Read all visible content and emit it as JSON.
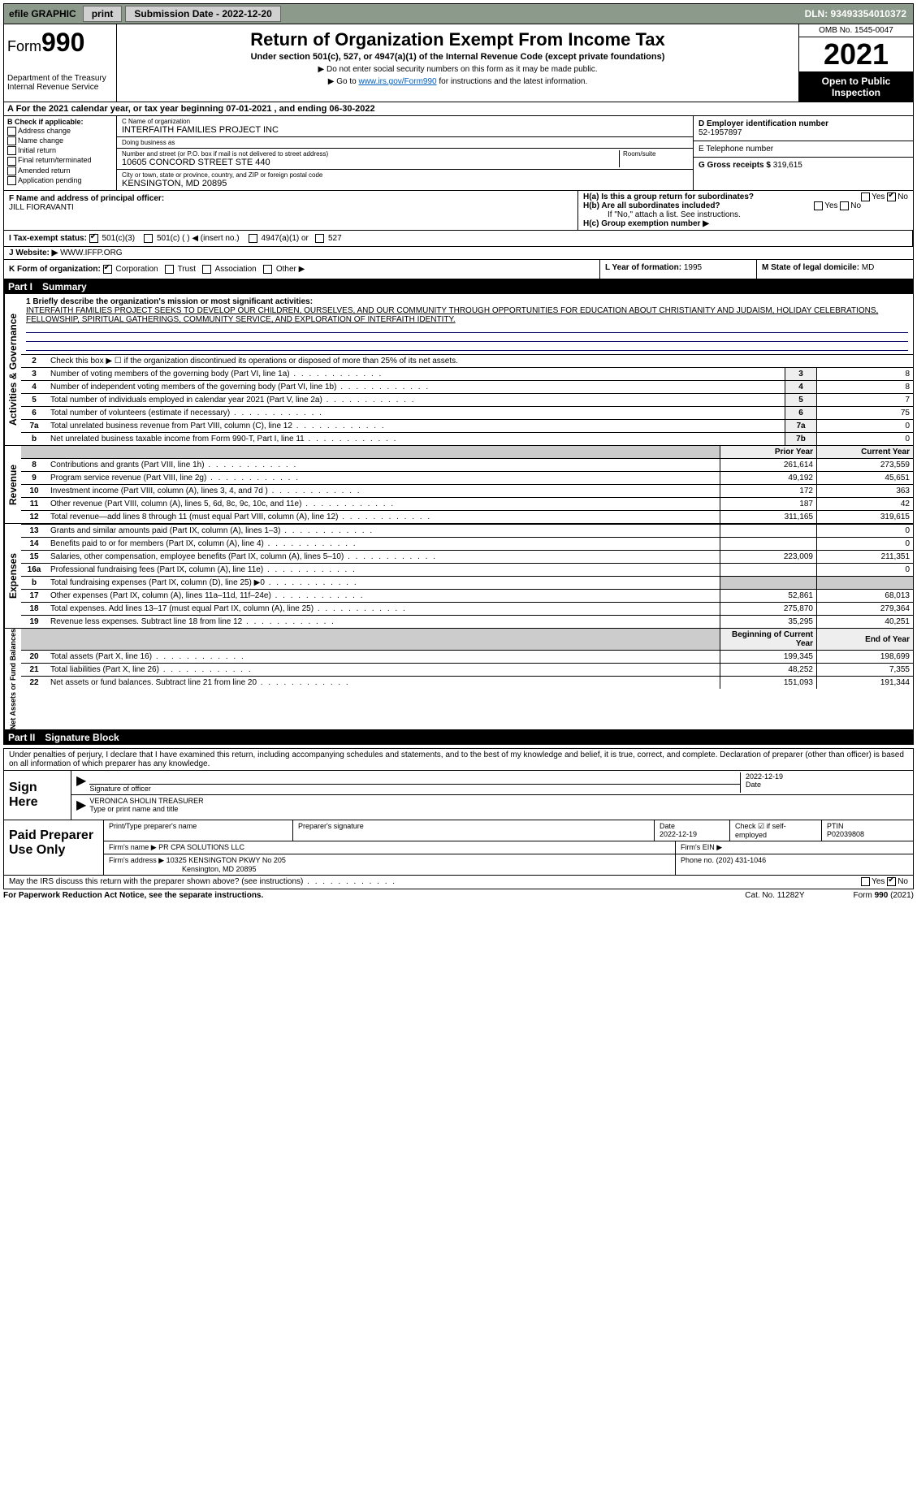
{
  "topbar": {
    "efile": "efile GRAPHIC",
    "print": "print",
    "subdate_label": "Submission Date - 2022-12-20",
    "dln": "DLN: 93493354010372"
  },
  "header": {
    "form_prefix": "Form",
    "form_number": "990",
    "title": "Return of Organization Exempt From Income Tax",
    "subtitle": "Under section 501(c), 527, or 4947(a)(1) of the Internal Revenue Code (except private foundations)",
    "note1": "▶ Do not enter social security numbers on this form as it may be made public.",
    "note2_pre": "▶ Go to ",
    "note2_link": "www.irs.gov/Form990",
    "note2_post": " for instructions and the latest information.",
    "dept": "Department of the Treasury",
    "irs": "Internal Revenue Service",
    "omb": "OMB No. 1545-0047",
    "year": "2021",
    "open": "Open to Public Inspection"
  },
  "period": "A For the 2021 calendar year, or tax year beginning 07-01-2021    , and ending 06-30-2022",
  "boxB": {
    "label": "B Check if applicable:",
    "items": [
      "Address change",
      "Name change",
      "Initial return",
      "Final return/terminated",
      "Amended return",
      "Application pending"
    ]
  },
  "boxC": {
    "name_label": "C Name of organization",
    "name": "INTERFAITH FAMILIES PROJECT INC",
    "dba_label": "Doing business as",
    "dba": "",
    "addr_label": "Number and street (or P.O. box if mail is not delivered to street address)",
    "room_label": "Room/suite",
    "addr": "10605 CONCORD STREET STE 440",
    "city_label": "City or town, state or province, country, and ZIP or foreign postal code",
    "city": "KENSINGTON, MD  20895"
  },
  "boxD": {
    "label": "D Employer identification number",
    "value": "52-1957897"
  },
  "boxE": {
    "label": "E Telephone number",
    "value": ""
  },
  "boxG": {
    "label": "G Gross receipts $",
    "value": "319,615"
  },
  "boxF": {
    "label": "F Name and address of principal officer:",
    "value": "JILL FIORAVANTI"
  },
  "boxH": {
    "ha": "H(a)  Is this a group return for subordinates?",
    "hb": "H(b)  Are all subordinates included?",
    "hb_note": "If \"No,\" attach a list. See instructions.",
    "hc": "H(c)  Group exemption number ▶",
    "yes": "Yes",
    "no": "No"
  },
  "boxI": {
    "label": "I   Tax-exempt status:",
    "opts": [
      "501(c)(3)",
      "501(c) (  ) ◀ (insert no.)",
      "4947(a)(1) or",
      "527"
    ]
  },
  "boxJ": {
    "label": "J   Website: ▶",
    "value": "WWW.IFFP.ORG"
  },
  "boxK": {
    "label": "K Form of organization:",
    "opts": [
      "Corporation",
      "Trust",
      "Association",
      "Other ▶"
    ]
  },
  "boxL": {
    "label": "L Year of formation:",
    "value": "1995"
  },
  "boxM": {
    "label": "M State of legal domicile:",
    "value": "MD"
  },
  "part1": {
    "num": "Part I",
    "title": "Summary"
  },
  "mission_label": "1  Briefly describe the organization's mission or most significant activities:",
  "mission": "INTERFAITH FAMILIES PROJECT SEEKS TO DEVELOP OUR CHILDREN, OURSELVES, AND OUR COMMUNITY THROUGH OPPORTUNITIES FOR EDUCATION ABOUT CHRISTIANITY AND JUDAISM, HOLIDAY CELEBRATIONS, FELLOWSHIP, SPIRITUAL GATHERINGS, COMMUNITY SERVICE, AND EXPLORATION OF INTERFAITH IDENTITY.",
  "governance": {
    "tab": "Activities & Governance",
    "line2": "Check this box ▶ ☐ if the organization discontinued its operations or disposed of more than 25% of its net assets.",
    "rows": [
      {
        "n": "3",
        "t": "Number of voting members of the governing body (Part VI, line 1a)",
        "ref": "3",
        "v": "8"
      },
      {
        "n": "4",
        "t": "Number of independent voting members of the governing body (Part VI, line 1b)",
        "ref": "4",
        "v": "8"
      },
      {
        "n": "5",
        "t": "Total number of individuals employed in calendar year 2021 (Part V, line 2a)",
        "ref": "5",
        "v": "7"
      },
      {
        "n": "6",
        "t": "Total number of volunteers (estimate if necessary)",
        "ref": "6",
        "v": "75"
      },
      {
        "n": "7a",
        "t": "Total unrelated business revenue from Part VIII, column (C), line 12",
        "ref": "7a",
        "v": "0"
      },
      {
        "n": "b",
        "t": "Net unrelated business taxable income from Form 990-T, Part I, line 11",
        "ref": "7b",
        "v": "0"
      }
    ]
  },
  "revenue": {
    "tab": "Revenue",
    "hprior": "Prior Year",
    "hcur": "Current Year",
    "rows": [
      {
        "n": "8",
        "t": "Contributions and grants (Part VIII, line 1h)",
        "p": "261,614",
        "c": "273,559"
      },
      {
        "n": "9",
        "t": "Program service revenue (Part VIII, line 2g)",
        "p": "49,192",
        "c": "45,651"
      },
      {
        "n": "10",
        "t": "Investment income (Part VIII, column (A), lines 3, 4, and 7d )",
        "p": "172",
        "c": "363"
      },
      {
        "n": "11",
        "t": "Other revenue (Part VIII, column (A), lines 5, 6d, 8c, 9c, 10c, and 11e)",
        "p": "187",
        "c": "42"
      },
      {
        "n": "12",
        "t": "Total revenue—add lines 8 through 11 (must equal Part VIII, column (A), line 12)",
        "p": "311,165",
        "c": "319,615"
      }
    ]
  },
  "expenses": {
    "tab": "Expenses",
    "rows": [
      {
        "n": "13",
        "t": "Grants and similar amounts paid (Part IX, column (A), lines 1–3)",
        "p": "",
        "c": "0"
      },
      {
        "n": "14",
        "t": "Benefits paid to or for members (Part IX, column (A), line 4)",
        "p": "",
        "c": "0"
      },
      {
        "n": "15",
        "t": "Salaries, other compensation, employee benefits (Part IX, column (A), lines 5–10)",
        "p": "223,009",
        "c": "211,351"
      },
      {
        "n": "16a",
        "t": "Professional fundraising fees (Part IX, column (A), line 11e)",
        "p": "",
        "c": "0"
      },
      {
        "n": "b",
        "t": "Total fundraising expenses (Part IX, column (D), line 25) ▶0",
        "p": "shade",
        "c": "shade"
      },
      {
        "n": "17",
        "t": "Other expenses (Part IX, column (A), lines 11a–11d, 11f–24e)",
        "p": "52,861",
        "c": "68,013"
      },
      {
        "n": "18",
        "t": "Total expenses. Add lines 13–17 (must equal Part IX, column (A), line 25)",
        "p": "275,870",
        "c": "279,364"
      },
      {
        "n": "19",
        "t": "Revenue less expenses. Subtract line 18 from line 12",
        "p": "35,295",
        "c": "40,251"
      }
    ]
  },
  "netassets": {
    "tab": "Net Assets or Fund Balances",
    "hprior": "Beginning of Current Year",
    "hcur": "End of Year",
    "rows": [
      {
        "n": "20",
        "t": "Total assets (Part X, line 16)",
        "p": "199,345",
        "c": "198,699"
      },
      {
        "n": "21",
        "t": "Total liabilities (Part X, line 26)",
        "p": "48,252",
        "c": "7,355"
      },
      {
        "n": "22",
        "t": "Net assets or fund balances. Subtract line 21 from line 20",
        "p": "151,093",
        "c": "191,344"
      }
    ]
  },
  "part2": {
    "num": "Part II",
    "title": "Signature Block"
  },
  "sig": {
    "declare": "Under penalties of perjury, I declare that I have examined this return, including accompanying schedules and statements, and to the best of my knowledge and belief, it is true, correct, and complete. Declaration of preparer (other than officer) is based on all information of which preparer has any knowledge.",
    "sign_here": "Sign Here",
    "sig_officer": "Signature of officer",
    "date": "Date",
    "sig_date": "2022-12-19",
    "name_title": "VERONICA SHOLIN  TREASURER",
    "type_label": "Type or print name and title",
    "paid": "Paid Preparer Use Only",
    "pt_name_label": "Print/Type preparer's name",
    "pt_sig_label": "Preparer's signature",
    "pt_date_label": "Date",
    "pt_date": "2022-12-19",
    "pt_check_label": "Check ☑ if self-employed",
    "ptin_label": "PTIN",
    "ptin": "P02039808",
    "firm_name_label": "Firm's name    ▶",
    "firm_name": "PR CPA SOLUTIONS LLC",
    "firm_ein_label": "Firm's EIN ▶",
    "firm_addr_label": "Firm's address ▶",
    "firm_addr1": "10325 KENSINGTON PKWY No 205",
    "firm_addr2": "Kensington, MD  20895",
    "phone_label": "Phone no.",
    "phone": "(202) 431-1046",
    "discuss": "May the IRS discuss this return with the preparer shown above? (see instructions)",
    "yes": "Yes",
    "no": "No"
  },
  "footer": {
    "left": "For Paperwork Reduction Act Notice, see the separate instructions.",
    "mid": "Cat. No. 11282Y",
    "right": "Form 990 (2021)"
  }
}
